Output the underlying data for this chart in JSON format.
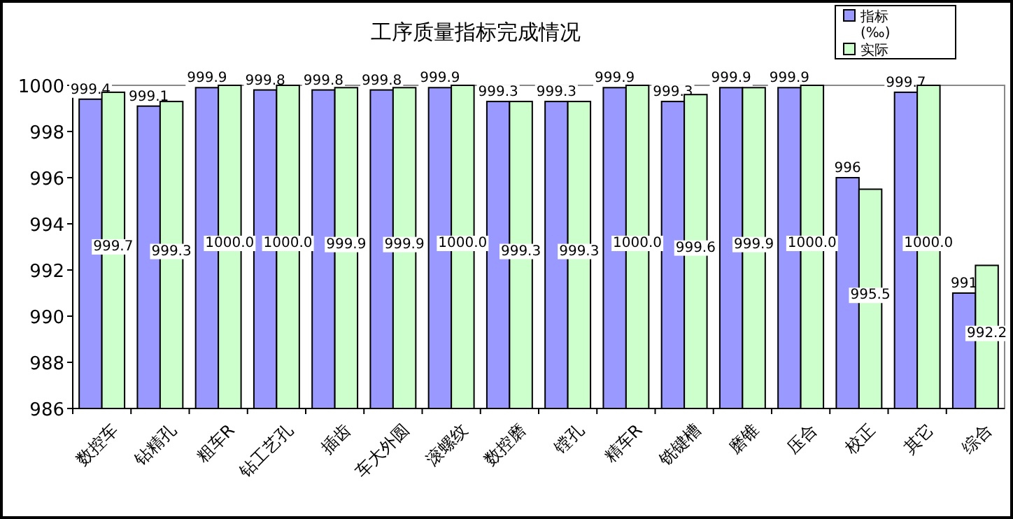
{
  "chart_data": {
    "type": "bar",
    "title": "工序质量指标完成情况",
    "categories": [
      "数控车",
      "钻精孔",
      "粗车R",
      "钻工艺孔",
      "插齿",
      "车大外圆",
      "滚螺纹",
      "数控磨",
      "镗孔",
      "精车R",
      "铣键槽",
      "磨锥",
      "压合",
      "校正",
      "其它",
      "综合"
    ],
    "series": [
      {
        "name": "指标\n(‰)",
        "color": "#9999ff",
        "values": [
          999.4,
          999.1,
          999.9,
          999.8,
          999.8,
          999.8,
          999.9,
          999.3,
          999.3,
          999.9,
          999.3,
          999.9,
          999.9,
          996,
          999.7,
          991
        ],
        "value_labels": [
          "999.4",
          "999.1",
          "999.9",
          "999.8",
          "999.8",
          "999.8",
          "999.9",
          "999.3",
          "999.3",
          "999.9",
          "999.3",
          "999.9",
          "999.9",
          "996",
          "999.7",
          "991"
        ]
      },
      {
        "name": "实际",
        "color": "#ccffcc",
        "values": [
          999.7,
          999.3,
          1000.0,
          1000.0,
          999.9,
          999.9,
          1000.0,
          999.3,
          999.3,
          1000.0,
          999.6,
          999.9,
          1000.0,
          995.5,
          1000.0,
          992.2
        ],
        "value_labels": [
          "999.7",
          "999.3",
          "1000.0",
          "1000.0",
          "999.9",
          "999.9",
          "1000.0",
          "999.3",
          "999.3",
          "1000.0",
          "999.6",
          "999.9",
          "1000.0",
          "995.5",
          "1000.0",
          "992.2"
        ]
      }
    ],
    "ylim": [
      986,
      1000
    ],
    "yticks": [
      986,
      988,
      990,
      992,
      994,
      996,
      998,
      1000
    ],
    "grid": false,
    "legend": "top right"
  }
}
